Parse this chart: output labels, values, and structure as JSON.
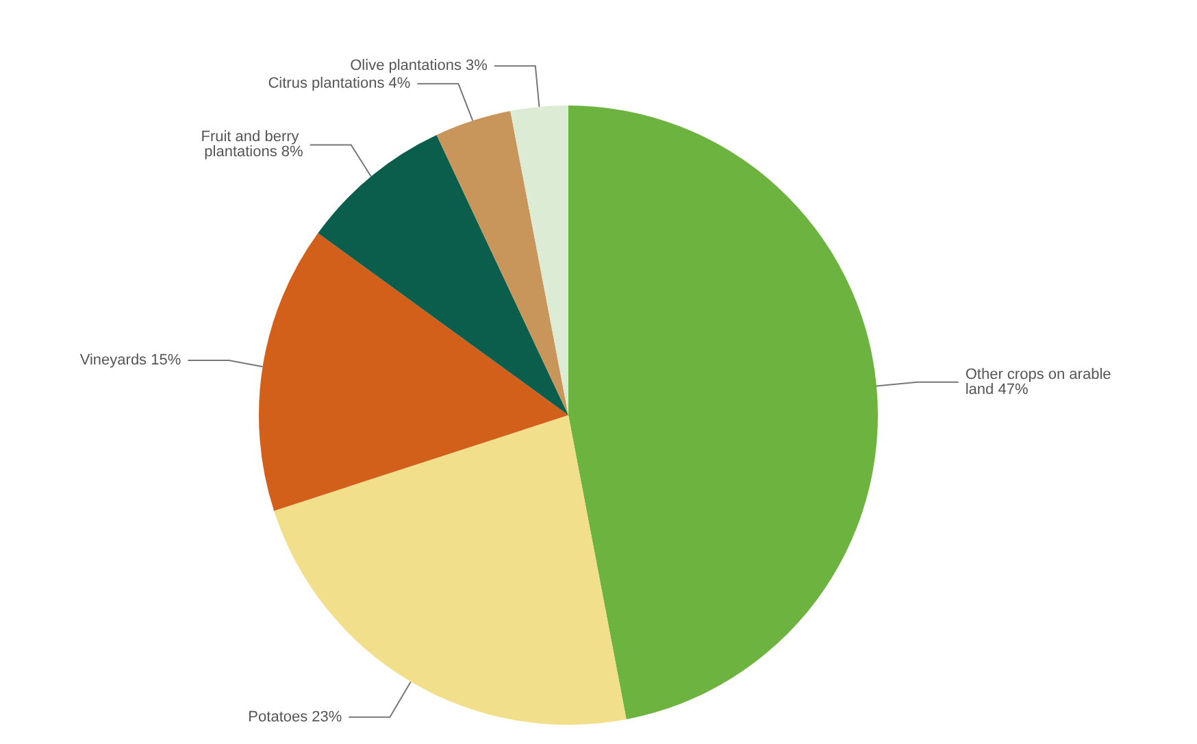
{
  "chart_data": {
    "type": "pie",
    "categories": [
      "Other crops on arable land",
      "Potatoes",
      "Vineyards",
      "Fruit and berry plantations",
      "Citrus plantations",
      "Olive plantations"
    ],
    "values": [
      47,
      23,
      15,
      8,
      4,
      3
    ],
    "value_labels": [
      "47%",
      "23%",
      "15%",
      "8%",
      "4%",
      "3%"
    ],
    "colors": [
      "#6db33f",
      "#f2df8c",
      "#d2601a",
      "#0b5d4c",
      "#c8955a",
      "#dcebd4"
    ],
    "legend": false
  }
}
